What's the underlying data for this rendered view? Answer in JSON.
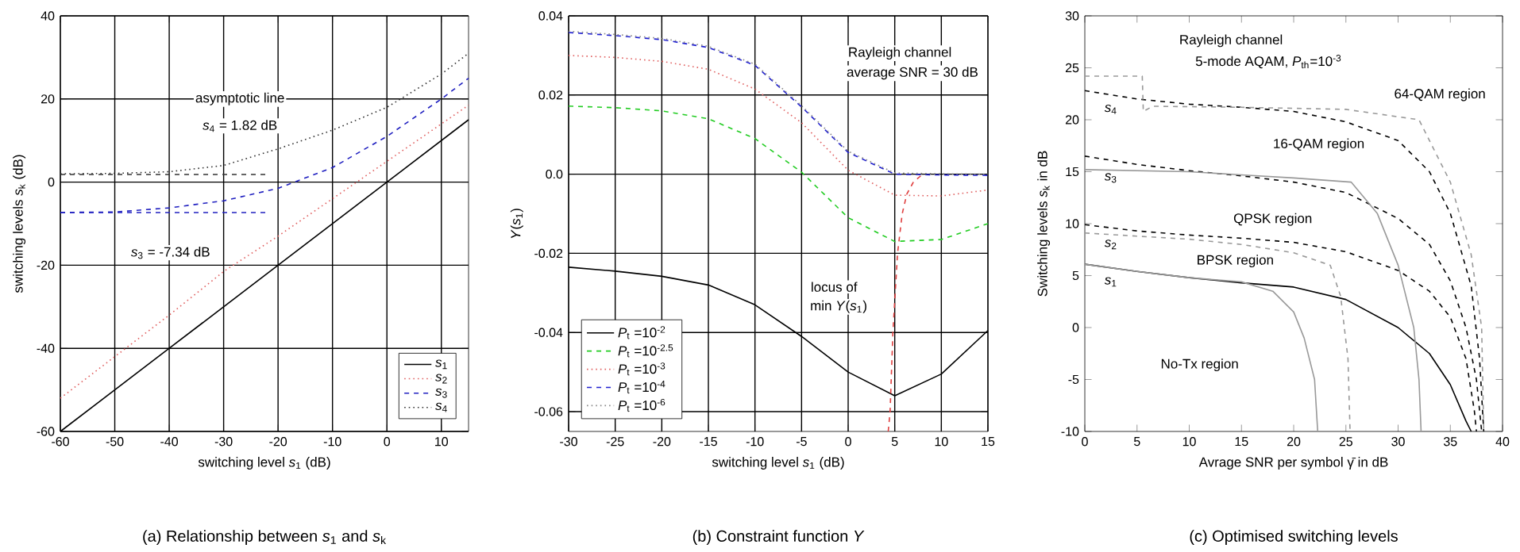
{
  "chart_data": [
    {
      "type": "line",
      "xlabel": "switching level *s*$_{1}$  (dB)",
      "ylabel": "switching levels *s*$_{k}$ (dB)",
      "xlim": [
        -60,
        15
      ],
      "ylim": [
        -60,
        40
      ],
      "xticks": [
        -60,
        -50,
        -40,
        -30,
        -20,
        -10,
        0,
        10
      ],
      "yticks": [
        -60,
        -40,
        -20,
        0,
        20,
        40
      ],
      "grid": true,
      "legend": "bottom right",
      "series": [
        {
          "name": "*s*$_{1}$",
          "color": "#000000",
          "line_style": "solid",
          "x": [
            -60,
            -40,
            -20,
            0,
            15
          ],
          "values": [
            -60,
            -40,
            -20,
            0,
            15
          ]
        },
        {
          "name": "*s*$_{2}$",
          "color": "#e06060",
          "line_style": "dotted",
          "x": [
            -60,
            -50,
            -40,
            -30,
            -20,
            -10,
            0,
            10,
            15
          ],
          "values": [
            -52,
            -42,
            -32,
            -21.5,
            -13,
            -4,
            5,
            14,
            18.5
          ]
        },
        {
          "name": "*s*$_{3}$",
          "color": "#2020c0",
          "line_style": "dashed",
          "x": [
            -60,
            -50,
            -40,
            -30,
            -20,
            -10,
            0,
            10,
            15
          ],
          "values": [
            -7.3,
            -7.2,
            -6.2,
            -4.5,
            -1.5,
            3.5,
            11,
            20,
            25
          ]
        },
        {
          "name": "*s*$_{4}$",
          "color": "#333333",
          "line_style": "dotted",
          "x": [
            -60,
            -50,
            -40,
            -30,
            -20,
            -10,
            0,
            10,
            15
          ],
          "values": [
            2,
            2.1,
            2.5,
            4,
            8,
            12.5,
            18,
            26,
            31
          ]
        },
        {
          "color": "#333333",
          "line_style": "dashed",
          "x": [
            -60,
            -22
          ],
          "values": [
            1.82,
            1.82
          ]
        },
        {
          "color": "#2020c0",
          "line_style": "dashed",
          "x": [
            -60,
            -22
          ],
          "values": [
            -7.34,
            -7.34
          ]
        }
      ],
      "annotations": [
        "asymptotic line",
        "*s*$_{4}$ = 1.82 dB",
        "*s*$_{3}$ = -7.34 dB",
        "(a) Relationship between *s*$_{1}$ and *s*$_{k}$"
      ]
    },
    {
      "type": "line",
      "xlabel": "switching level *s*$_{1}$ (dB)",
      "ylabel": "*Y*(*s*$_{1}$)",
      "xlim": [
        -30,
        15
      ],
      "ylim": [
        -0.065,
        0.04
      ],
      "xticks": [
        -30,
        -25,
        -20,
        -15,
        -10,
        -5,
        0,
        5,
        10,
        15
      ],
      "yticks": [
        -0.06,
        -0.04,
        -0.02,
        {
          "value": 0,
          "label": "0.0"
        },
        0.02,
        0.04
      ],
      "grid": true,
      "legend": "bottom left",
      "series": [
        {
          "name": "*P*$_{t}$ =10$^{-2}$",
          "color": "#000000",
          "line_style": "solid",
          "x": [
            -30,
            -25,
            -20,
            -15,
            -10,
            -5,
            0,
            5,
            10,
            15
          ],
          "values": [
            -0.0235,
            -0.0245,
            -0.0258,
            -0.028,
            -0.033,
            -0.041,
            -0.05,
            -0.056,
            -0.0505,
            -0.0395
          ]
        },
        {
          "name": "*P*$_{t}$ =10$^{-2.5}$",
          "color": "#22cc22",
          "line_style": "dashed",
          "x": [
            -30,
            -25,
            -20,
            -15,
            -10,
            -5,
            0,
            5,
            10,
            15
          ],
          "values": [
            0.0172,
            0.0168,
            0.016,
            0.014,
            0.009,
            0.0005,
            -0.011,
            -0.017,
            -0.0165,
            -0.0125
          ]
        },
        {
          "name": "*P*$_{t}$ =10$^{-3}$",
          "color": "#e06060",
          "line_style": "dotted",
          "x": [
            -30,
            -25,
            -20,
            -15,
            -10,
            -5,
            0,
            5,
            10,
            15
          ],
          "values": [
            0.03,
            0.0295,
            0.0285,
            0.0265,
            0.0215,
            0.013,
            0.001,
            -0.0053,
            -0.0055,
            -0.004
          ]
        },
        {
          "name": "*P*$_{t}$ =10$^{-4}$",
          "color": "#2020d0",
          "line_style": "dashed",
          "x": [
            -30,
            -25,
            -20,
            -15,
            -10,
            -5,
            0,
            5,
            10,
            15
          ],
          "values": [
            0.0358,
            0.035,
            0.034,
            0.032,
            0.0275,
            0.017,
            0.0055,
            0,
            -0.0002,
            -0.0003
          ]
        },
        {
          "name": "*P*$_{t}$ =10$^{-6}$",
          "color": "#888888",
          "line_style": "dotted",
          "x": [
            -30,
            -25,
            -20,
            -15,
            -10,
            -5,
            0,
            5,
            10,
            15
          ],
          "values": [
            0.0361,
            0.0353,
            0.0343,
            0.0323,
            0.0278,
            0.0173,
            0.0058,
            0.0003,
            0.0001,
            0
          ]
        },
        {
          "color": "#e04040",
          "line_style": "dashed",
          "x": [
            4.3,
            4.5,
            4.8,
            5.3,
            5.8,
            6.3,
            7,
            8
          ],
          "values": [
            -0.065,
            -0.06,
            -0.04,
            -0.02,
            -0.01,
            -0.005,
            -0.002,
            0
          ]
        }
      ],
      "annotations": [
        "Rayleigh channel",
        "average SNR = 30 dB",
        "locus of",
        "min *Y*(*s*$_{1}$)",
        "(b) Constraint function *Y*"
      ]
    },
    {
      "type": "line",
      "xlabel": "Avrage SNR per symbol γ̄  in dB",
      "ylabel": "Switching levels *s*$_{k}$ in dB",
      "xlim": [
        0,
        40
      ],
      "ylim": [
        -10,
        30
      ],
      "xticks": [
        0,
        5,
        10,
        15,
        20,
        25,
        30,
        35,
        40
      ],
      "yticks": [
        -10,
        -5,
        0,
        5,
        10,
        15,
        20,
        25,
        30
      ],
      "series": [
        {
          "color": "#000000",
          "line_style": "solid",
          "x": [
            0,
            5,
            10,
            15,
            20,
            25,
            30,
            33,
            35,
            36.5,
            37
          ],
          "values": [
            6.1,
            5.4,
            4.8,
            4.3,
            3.9,
            2.7,
            0,
            -2.5,
            -5.5,
            -9,
            -10
          ]
        },
        {
          "color": "#999999",
          "line_style": "solid",
          "x": [
            0,
            5,
            10,
            15,
            18,
            20,
            21,
            22,
            22.3
          ],
          "values": [
            6.1,
            5.4,
            4.8,
            4.4,
            3.5,
            1.5,
            -1,
            -5,
            -10
          ]
        },
        {
          "color": "#000000",
          "line_style": "dashed",
          "x": [
            0,
            5,
            10,
            15,
            20,
            25,
            30,
            33,
            35,
            36.5,
            37.3,
            37.5
          ],
          "values": [
            9.9,
            9.3,
            8.9,
            8.6,
            8.2,
            7.3,
            5.5,
            3.5,
            1,
            -3,
            -8,
            -10
          ]
        },
        {
          "color": "#999999",
          "line_style": "dashed",
          "x": [
            0,
            5,
            10,
            15,
            20,
            23.5,
            24.5,
            25.2,
            25.4
          ],
          "values": [
            9.1,
            8.8,
            8.5,
            8,
            7.2,
            6,
            3,
            -3,
            -10
          ]
        },
        {
          "color": "#000000",
          "line_style": "dashed",
          "x": [
            0,
            5,
            10,
            15,
            20,
            25,
            30,
            33,
            35,
            36.5,
            37.5,
            38
          ],
          "values": [
            16.5,
            15.7,
            15.1,
            14.6,
            14,
            13,
            10.5,
            8,
            4.5,
            0,
            -5,
            -10
          ]
        },
        {
          "color": "#999999",
          "line_style": "solid",
          "x": [
            0,
            10,
            15,
            20,
            25.5,
            28,
            30,
            31.5,
            32,
            32.2
          ],
          "values": [
            15.2,
            15,
            14.7,
            14.4,
            14,
            11,
            6,
            0,
            -5,
            -10
          ]
        },
        {
          "color": "#000000",
          "line_style": "dashed",
          "x": [
            0,
            5,
            10,
            15,
            20,
            25,
            30,
            33,
            35,
            37,
            37.8,
            38.2
          ],
          "values": [
            22.8,
            22,
            21.5,
            21.2,
            20.8,
            19.8,
            18,
            15,
            11,
            4,
            -3,
            -10
          ]
        },
        {
          "color": "#999999",
          "line_style": "dashed",
          "x": [
            0,
            5.5,
            5.6,
            6.5,
            15,
            25,
            32,
            35,
            37,
            38,
            38.2
          ],
          "values": [
            24.2,
            24.2,
            20.8,
            21.3,
            21.2,
            21,
            20,
            14,
            7,
            0,
            -10
          ]
        }
      ],
      "annotations": [
        "Rayleigh channel",
        "5-mode AQAM, *P*$_{th}$=10$^{-3}$",
        "64-QAM region",
        "16-QAM region",
        "QPSK region",
        "BPSK region",
        "No-Tx region",
        "*s*$_{4}$",
        "*s*$_{3}$",
        "*s*$_{2}$",
        "*s*$_{1}$",
        "(c) Optimised switching levels"
      ]
    }
  ]
}
